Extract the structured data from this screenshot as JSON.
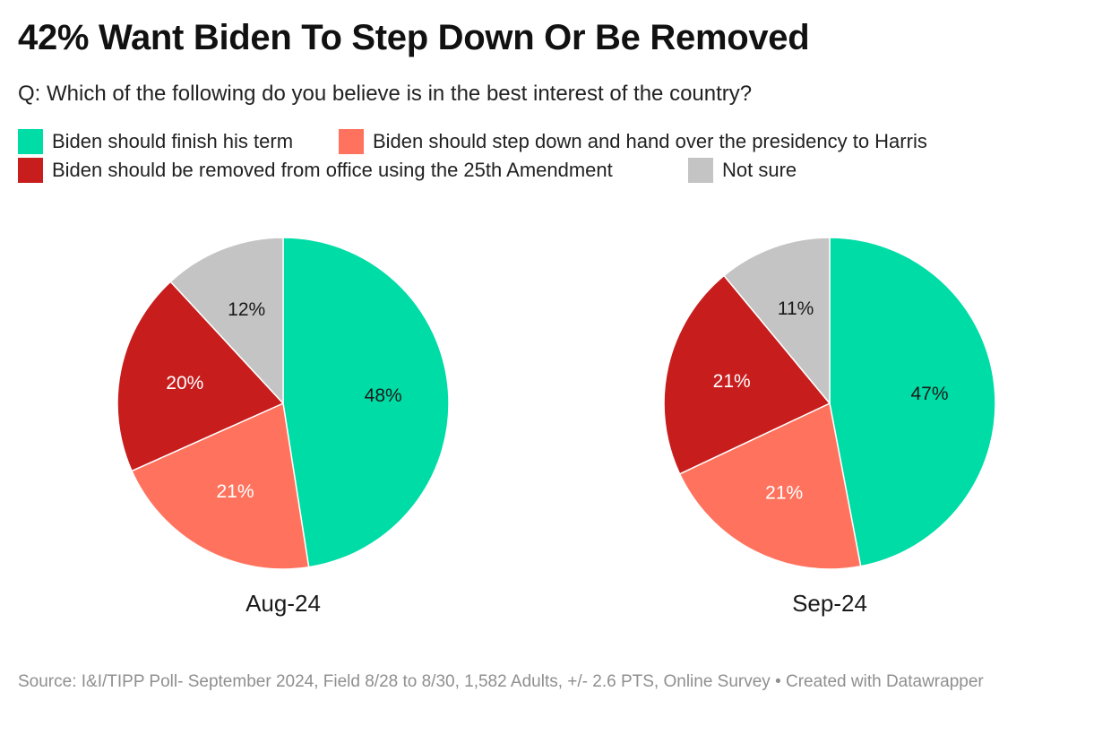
{
  "title": "42% Want Biden To Step Down Or Be Removed",
  "subtitle": "Q: Which of the following do you believe is in the best interest of the country?",
  "legend": [
    {
      "label": "Biden should finish his term",
      "color": "#00dca6"
    },
    {
      "label": "Biden should step down and hand over the presidency to Harris",
      "color": "#ff735e"
    },
    {
      "label": "Biden should be removed from office using the 25th Amendment",
      "color": "#c71e1d"
    },
    {
      "label": "Not sure",
      "color": "#c4c4c4"
    }
  ],
  "chart_data": [
    {
      "type": "pie",
      "title": "Aug-24",
      "categories": [
        "Biden should finish his term",
        "Biden should step down and hand over the presidency to Harris",
        "Biden should be removed from office using the 25th Amendment",
        "Not sure"
      ],
      "values": [
        48,
        21,
        20,
        12
      ],
      "labels": [
        "48%",
        "21%",
        "20%",
        "12%"
      ],
      "colors": [
        "#00dca6",
        "#ff735e",
        "#c71e1d",
        "#c4c4c4"
      ],
      "label_colors": [
        "#1a1a1a",
        "#ffffff",
        "#ffffff",
        "#1a1a1a"
      ]
    },
    {
      "type": "pie",
      "title": "Sep-24",
      "categories": [
        "Biden should finish his term",
        "Biden should step down and hand over the presidency to Harris",
        "Biden should be removed from office using the 25th Amendment",
        "Not sure"
      ],
      "values": [
        47,
        21,
        21,
        11
      ],
      "labels": [
        "47%",
        "21%",
        "21%",
        "11%"
      ],
      "colors": [
        "#00dca6",
        "#ff735e",
        "#c71e1d",
        "#c4c4c4"
      ],
      "label_colors": [
        "#1a1a1a",
        "#ffffff",
        "#ffffff",
        "#1a1a1a"
      ]
    }
  ],
  "footer": "Source: I&I/TIPP Poll- September 2024, Field 8/28 to 8/30, 1,582 Adults, +/- 2.6 PTS, Online Survey • Created with Datawrapper"
}
